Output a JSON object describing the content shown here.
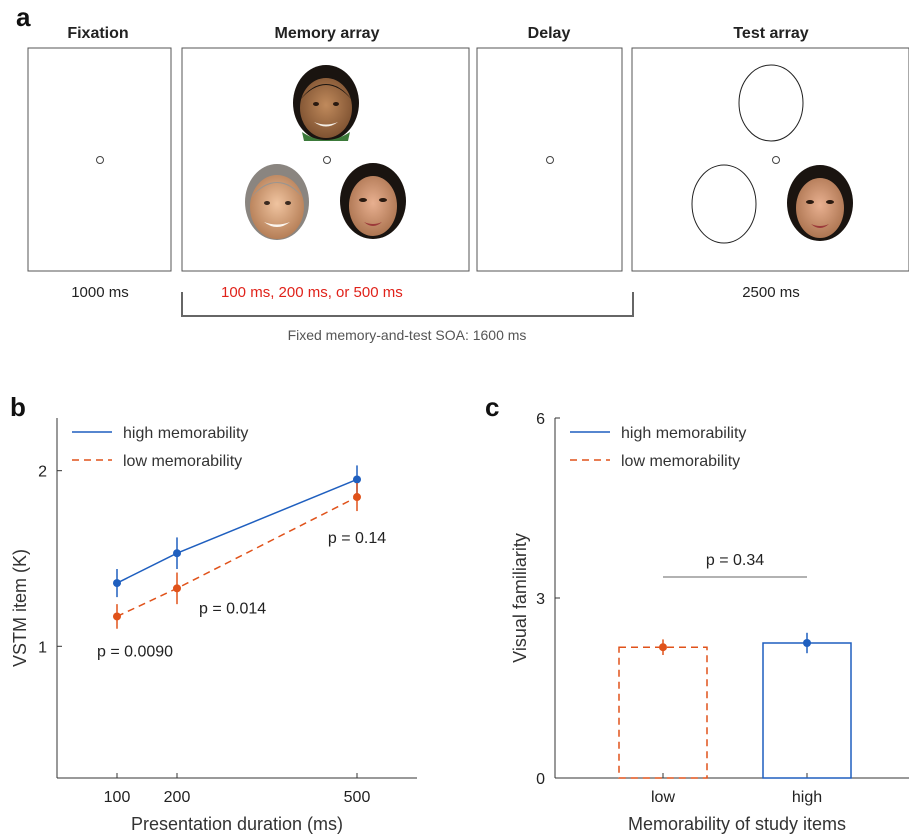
{
  "colors": {
    "high": "#1f5fbf",
    "low": "#e0521a",
    "duration_text": "#e0221a",
    "axis": "#333333",
    "frame": "#555555",
    "bracket": "#666666",
    "face_skin_1": "#9c6a44",
    "face_skin_2": "#d8a27c",
    "face_skin_3": "#c48a66",
    "hair_dark": "#1a1410"
  },
  "panel_a": {
    "letter": "a",
    "stages": [
      {
        "title": "Fixation",
        "duration": "1000 ms"
      },
      {
        "title": "Memory array",
        "duration": "100 ms, 200 ms, or 500 ms"
      },
      {
        "title": "Delay",
        "duration": ""
      },
      {
        "title": "Test array",
        "duration": "2500 ms"
      }
    ],
    "soa_label": "Fixed memory-and-test SOA: 1600 ms",
    "icons": [
      "fixation-dot-icon",
      "face-photo-icon",
      "empty-oval-icon"
    ]
  },
  "chart_data": [
    {
      "panel": "b",
      "type": "line",
      "xlabel": "Presentation duration (ms)",
      "ylabel": "VSTM item (K)",
      "xlim": [
        0,
        600
      ],
      "ylim": [
        0.25,
        2.3
      ],
      "xticks": [
        100,
        200,
        500
      ],
      "yticks": [
        1,
        2
      ],
      "legend_position": "top-left",
      "series": [
        {
          "name": "high memorability",
          "style": "solid",
          "x": [
            100,
            200,
            500
          ],
          "y": [
            1.36,
            1.53,
            1.95
          ],
          "err": [
            0.08,
            0.09,
            0.08
          ]
        },
        {
          "name": "low memorability",
          "style": "dashed",
          "x": [
            100,
            200,
            500
          ],
          "y": [
            1.17,
            1.33,
            1.85
          ],
          "err": [
            0.07,
            0.09,
            0.08
          ]
        }
      ],
      "annotations": [
        {
          "text": "p = 0.0090",
          "x": 100
        },
        {
          "text": "p = 0.014",
          "x": 200
        },
        {
          "text": "p = 0.14",
          "x": 500
        }
      ]
    },
    {
      "panel": "c",
      "type": "bar",
      "xlabel": "Memorability of study items",
      "ylabel": "Visual familiarity",
      "categories": [
        "low",
        "high"
      ],
      "ylim": [
        0,
        6
      ],
      "yticks": [
        0,
        3,
        6
      ],
      "legend_position": "top-left",
      "series": [
        {
          "name": "low memorability",
          "style": "dashed",
          "category": "low",
          "value": 2.18,
          "err": 0.13
        },
        {
          "name": "high memorability",
          "style": "solid",
          "category": "high",
          "value": 2.25,
          "err": 0.17
        }
      ],
      "annotations": [
        {
          "text": "p = 0.34"
        }
      ]
    }
  ]
}
